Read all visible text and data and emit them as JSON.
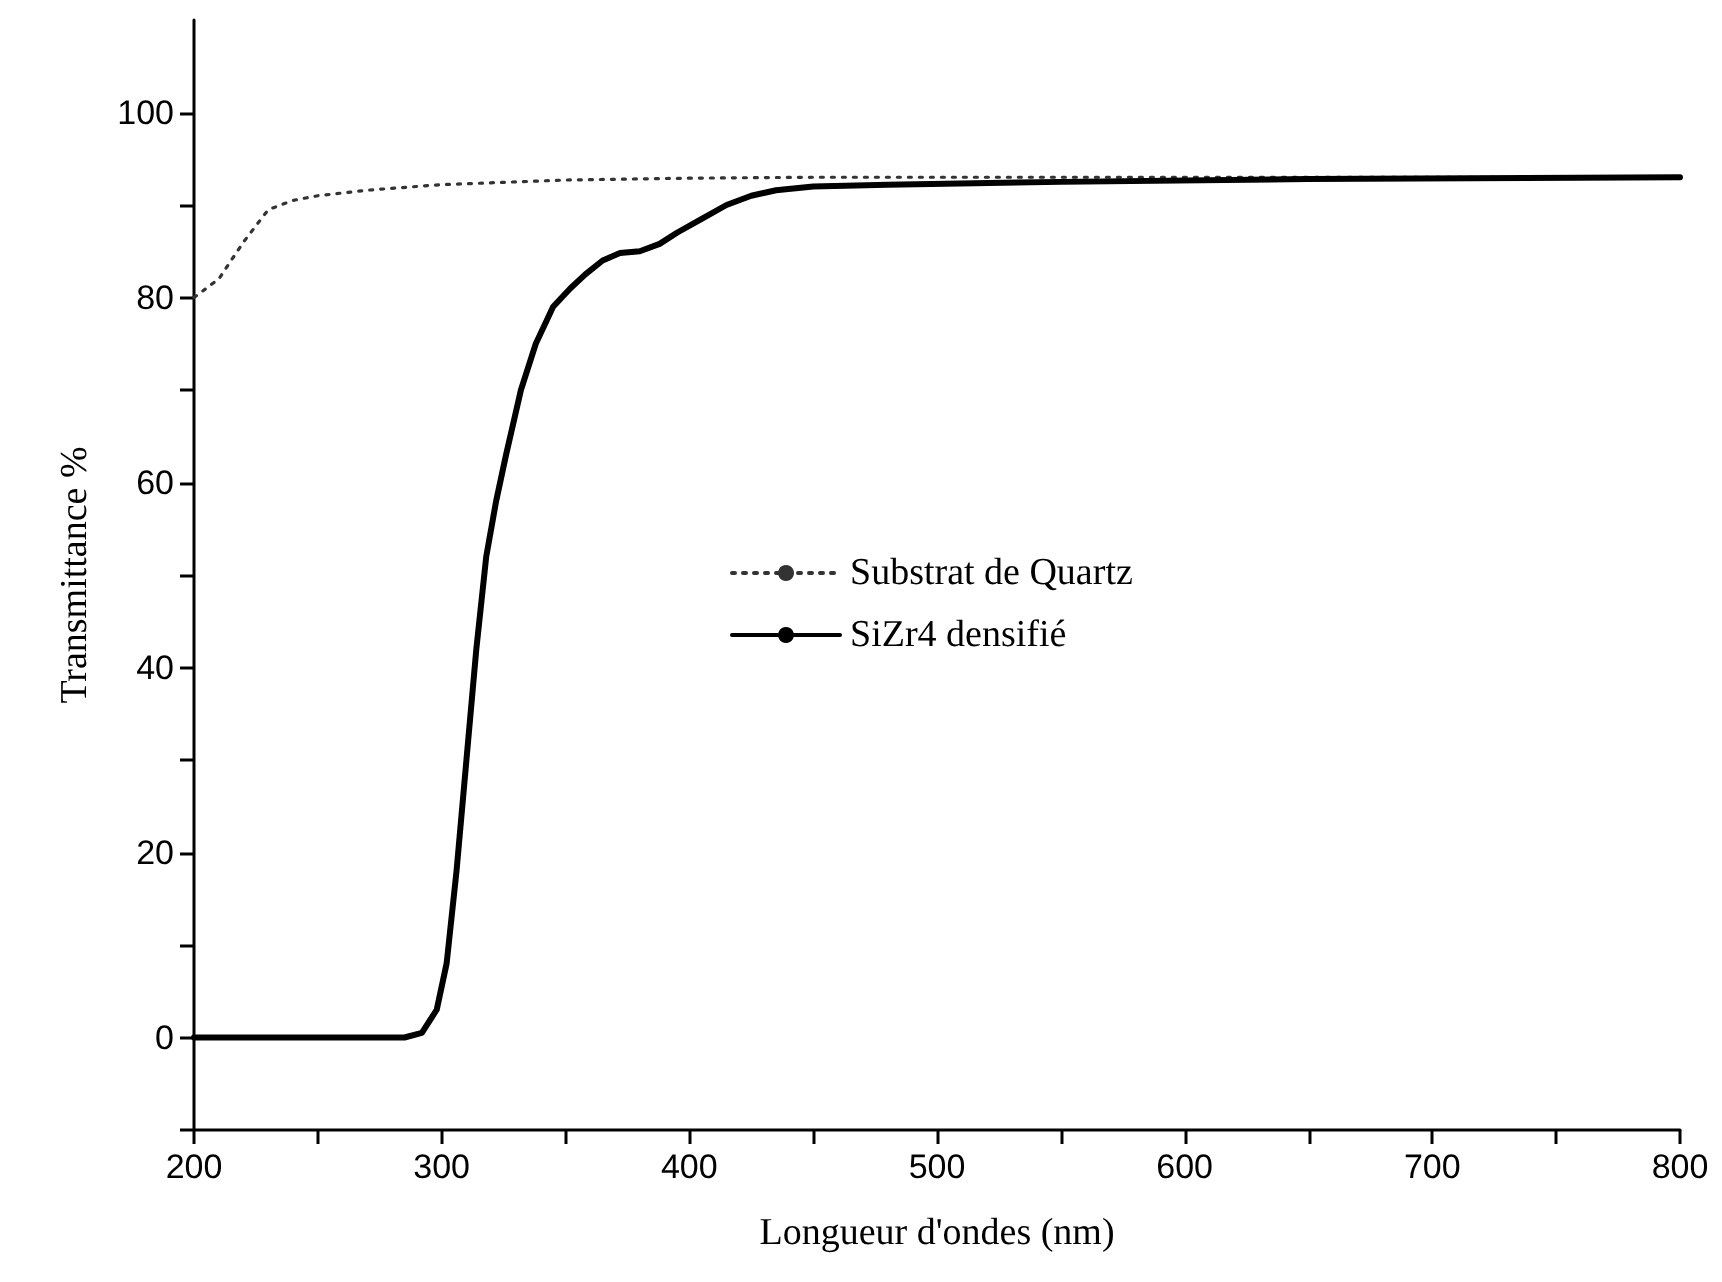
{
  "chart_data": {
    "type": "line",
    "xlabel": "Longueur d'ondes (nm)",
    "ylabel": "Transmittance %",
    "xlim": [
      200,
      800
    ],
    "xticks": [
      200,
      {
        "value": 250,
        "label": null
      },
      300,
      {
        "value": 350,
        "label": null
      },
      400,
      {
        "value": 450,
        "label": null
      },
      500,
      {
        "value": 550,
        "label": null
      },
      600,
      {
        "value": 650,
        "label": null
      },
      700,
      {
        "value": 750,
        "label": null
      },
      800
    ],
    "ylim": [
      -10,
      110
    ],
    "yticks": [
      {
        "value": -10,
        "label": null
      },
      0,
      {
        "value": 10,
        "label": null
      },
      20,
      {
        "value": 30,
        "label": null
      },
      40,
      {
        "value": 50,
        "label": null
      },
      60,
      {
        "value": 70,
        "label": null
      },
      80,
      {
        "value": 90,
        "label": null
      },
      100
    ],
    "grid": false,
    "legend": "right",
    "marker": "none",
    "series": [
      {
        "name": "Substrat de Quartz",
        "color": "#333333",
        "line_style": "dotted",
        "x": [
          200,
          210,
          220,
          230,
          240,
          250,
          270,
          300,
          350,
          400,
          450,
          500,
          600,
          700,
          800
        ],
        "values": [
          80,
          82,
          86,
          89.5,
          90.5,
          91,
          91.6,
          92.2,
          92.7,
          92.9,
          93,
          93,
          93,
          93,
          93
        ]
      },
      {
        "name": "SiZr4 densifié",
        "color": "#000000",
        "line_style": "solid",
        "x": [
          200,
          250,
          285,
          292,
          298,
          302,
          306,
          310,
          314,
          318,
          322,
          326,
          332,
          338,
          345,
          352,
          358,
          365,
          372,
          380,
          388,
          395,
          405,
          415,
          425,
          435,
          450,
          480,
          550,
          650,
          800
        ],
        "values": [
          0,
          0,
          0,
          0.5,
          3,
          8,
          18,
          30,
          42,
          52,
          58,
          63,
          70,
          75,
          79,
          81,
          82.5,
          84,
          84.8,
          85,
          85.8,
          87,
          88.5,
          90,
          91,
          91.6,
          92,
          92.2,
          92.5,
          92.8,
          93
        ]
      }
    ]
  }
}
